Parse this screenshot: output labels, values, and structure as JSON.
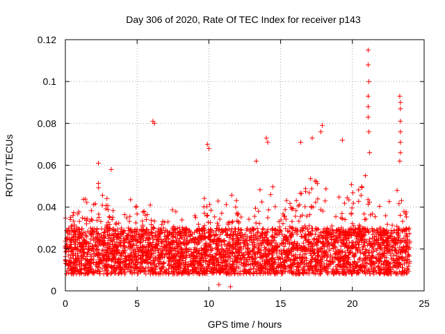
{
  "chart_data": {
    "type": "scatter",
    "title": "Day 306 of 2020, Rate Of TEC Index for receiver p143",
    "xlabel": "GPS time / hours",
    "ylabel": "ROTI / TECUs",
    "xlim": [
      0,
      25
    ],
    "ylim": [
      0,
      0.12
    ],
    "xticks": [
      0,
      5,
      10,
      15,
      20,
      25
    ],
    "xtick_labels": [
      "0",
      "5",
      "10",
      "15",
      "20",
      "25"
    ],
    "yticks": [
      0,
      0.02,
      0.04,
      0.06,
      0.08,
      0.1,
      0.12
    ],
    "ytick_labels": [
      "0",
      "0.02",
      "0.04",
      "0.06",
      "0.08",
      "0.1",
      "0.12"
    ],
    "grid": true,
    "marker": "+",
    "marker_color": "#ff0000",
    "x_range_data": [
      0,
      24
    ],
    "baseline_range": [
      0.008,
      0.03
    ],
    "notable_points": [
      {
        "x": 6.1,
        "y": 0.081
      },
      {
        "x": 6.2,
        "y": 0.08
      },
      {
        "x": 9.9,
        "y": 0.07
      },
      {
        "x": 10.0,
        "y": 0.068
      },
      {
        "x": 14.0,
        "y": 0.073
      },
      {
        "x": 14.1,
        "y": 0.071
      },
      {
        "x": 17.9,
        "y": 0.079
      },
      {
        "x": 17.8,
        "y": 0.076
      },
      {
        "x": 21.1,
        "y": 0.115
      },
      {
        "x": 21.1,
        "y": 0.108
      },
      {
        "x": 21.15,
        "y": 0.1
      },
      {
        "x": 21.1,
        "y": 0.093
      },
      {
        "x": 21.1,
        "y": 0.088
      },
      {
        "x": 21.1,
        "y": 0.083
      },
      {
        "x": 21.15,
        "y": 0.076
      },
      {
        "x": 21.2,
        "y": 0.066
      },
      {
        "x": 23.3,
        "y": 0.093
      },
      {
        "x": 23.35,
        "y": 0.09
      },
      {
        "x": 23.35,
        "y": 0.087
      },
      {
        "x": 23.35,
        "y": 0.081
      },
      {
        "x": 23.35,
        "y": 0.076
      },
      {
        "x": 23.35,
        "y": 0.071
      },
      {
        "x": 23.35,
        "y": 0.066
      },
      {
        "x": 23.3,
        "y": 0.062
      },
      {
        "x": 2.3,
        "y": 0.061
      },
      {
        "x": 3.2,
        "y": 0.058
      },
      {
        "x": 13.3,
        "y": 0.062
      },
      {
        "x": 16.4,
        "y": 0.071
      },
      {
        "x": 17.2,
        "y": 0.073
      },
      {
        "x": 19.3,
        "y": 0.072
      },
      {
        "x": 20.9,
        "y": 0.055
      },
      {
        "x": 11.5,
        "y": 0.002
      },
      {
        "x": 10.7,
        "y": 0.003
      }
    ]
  }
}
